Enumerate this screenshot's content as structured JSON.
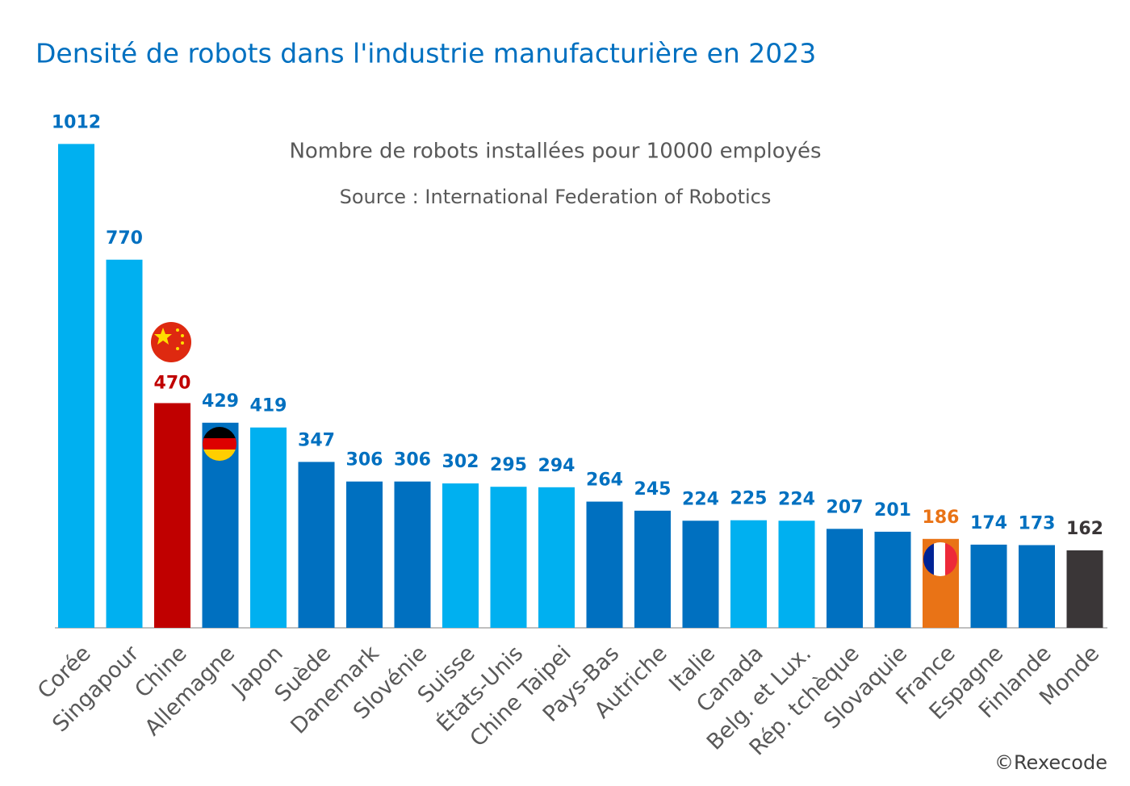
{
  "chart_data": {
    "type": "bar",
    "title": "Densité de robots dans l'industrie manufacturière en 2023",
    "subtitle": "Nombre de robots installées pour 10000 employés",
    "source": "Source : International Federation of Robotics",
    "credit": "©Rexecode",
    "categories": [
      "Corée",
      "Singapour",
      "Chine",
      "Allemagne",
      "Japon",
      "Suède",
      "Danemark",
      "Slovénie",
      "Suisse",
      "États-Unis",
      "Chine Taipei",
      "Pays-Bas",
      "Autriche",
      "Italie",
      "Canada",
      "Belg. et Lux.",
      "Rép. tchèque",
      "Slovaquie",
      "France",
      "Espagne",
      "Finlande",
      "Monde"
    ],
    "values": [
      1012,
      770,
      470,
      429,
      419,
      347,
      306,
      306,
      302,
      295,
      294,
      264,
      245,
      224,
      225,
      224,
      207,
      201,
      186,
      174,
      173,
      162
    ],
    "colors": [
      "#00b0f0",
      "#00b0f0",
      "#c00000",
      "#0070c0",
      "#00b0f0",
      "#0070c0",
      "#0070c0",
      "#0070c0",
      "#00b0f0",
      "#00b0f0",
      "#00b0f0",
      "#0070c0",
      "#0070c0",
      "#0070c0",
      "#00b0f0",
      "#00b0f0",
      "#0070c0",
      "#0070c0",
      "#e97316",
      "#0070c0",
      "#0070c0",
      "#3a3637"
    ],
    "label_colors": [
      "#0070c0",
      "#0070c0",
      "#c00000",
      "#0070c0",
      "#0070c0",
      "#0070c0",
      "#0070c0",
      "#0070c0",
      "#0070c0",
      "#0070c0",
      "#0070c0",
      "#0070c0",
      "#0070c0",
      "#0070c0",
      "#0070c0",
      "#0070c0",
      "#0070c0",
      "#0070c0",
      "#e97316",
      "#0070c0",
      "#0070c0",
      "#3a3637"
    ],
    "ylim": [
      0,
      1200
    ]
  }
}
